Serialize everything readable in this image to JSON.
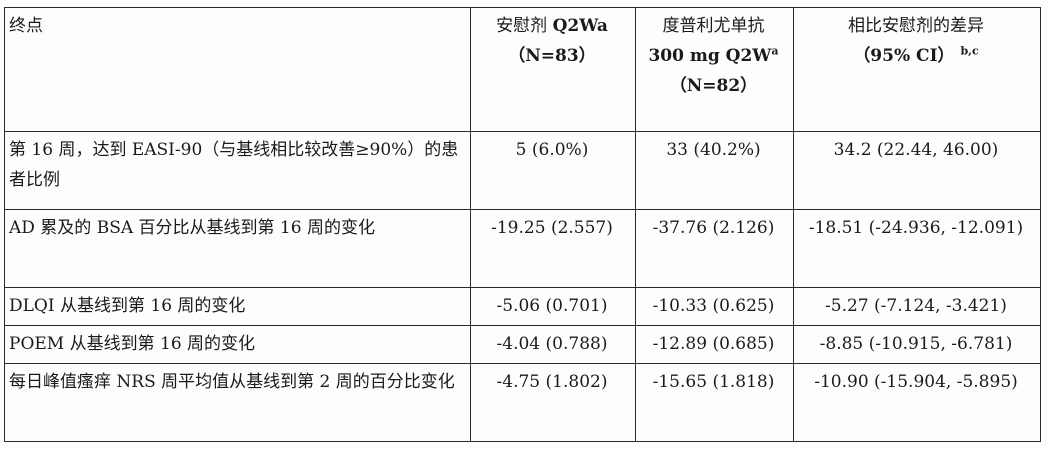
{
  "table": {
    "header": {
      "endpoint": "终点",
      "placebo": {
        "line1_name": "安慰剂 ",
        "line1_bold": "Q2Wa",
        "line2": "（N=83）"
      },
      "dupilumab": {
        "line1": "度普利尤单抗",
        "line2_bold": "300 mg Q2W",
        "line2_sup": "a",
        "line3": "（N=82）"
      },
      "diff": {
        "line1": "相比安慰剂的差异",
        "line2_bold": "（95% CI）",
        "line2_sup": "b,c"
      }
    },
    "rows": [
      {
        "endpoint": "第 16 周，达到 EASI-90（与基线相比较改善≥90%）的患者比例",
        "placebo": "5 (6.0%)",
        "dupilumab": "33 (40.2%)",
        "diff": "34.2 (22.44, 46.00)"
      },
      {
        "endpoint": "AD 累及的 BSA 百分比从基线到第 16 周的变化",
        "placebo": "-19.25 (2.557)",
        "dupilumab": "-37.76 (2.126)",
        "diff": "-18.51 (-24.936, -12.091)"
      },
      {
        "endpoint": "DLQI 从基线到第 16 周的变化",
        "placebo": "-5.06 (0.701)",
        "dupilumab": "-10.33 (0.625)",
        "diff": "-5.27 (-7.124, -3.421)"
      },
      {
        "endpoint": "POEM 从基线到第 16 周的变化",
        "placebo": "-4.04 (0.788)",
        "dupilumab": "-12.89 (0.685)",
        "diff": "-8.85 (-10.915, -6.781)"
      },
      {
        "endpoint": "每日峰值瘙痒 NRS 周平均值从基线到第 2 周的百分比变化",
        "placebo": "-4.75 (1.802)",
        "dupilumab": "-15.65 (1.818)",
        "diff": "-10.90 (-15.904, -5.895)"
      }
    ]
  }
}
